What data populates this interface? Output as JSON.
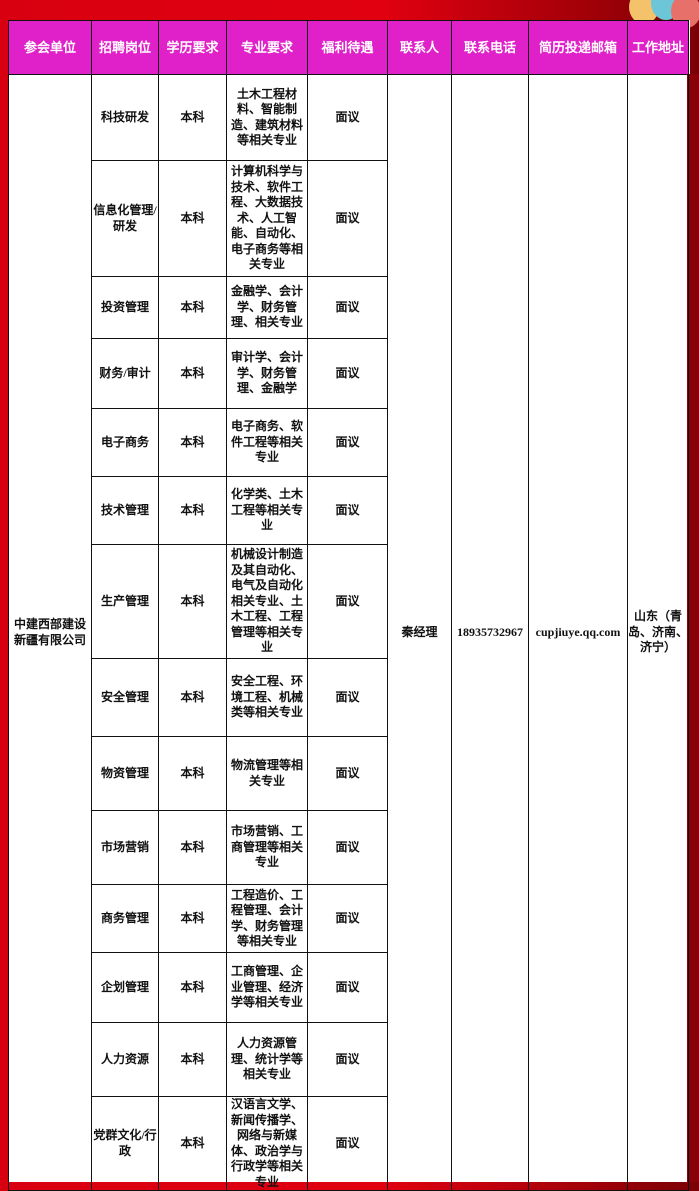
{
  "headers": [
    "参会单位",
    "招聘岗位",
    "学历要求",
    "专业要求",
    "福利待遇",
    "联系人",
    "联系电话",
    "简历投递邮箱",
    "工作地址"
  ],
  "company": "中建西部建设新疆有限公司",
  "contact": "秦经理",
  "phone": "18935732967",
  "email": "cupjiuye.qq.com",
  "address": "山东（青岛、济南、济宁）",
  "rows": [
    {
      "position": "科技研发",
      "education": "本科",
      "major": "土木工程材料、智能制造、建筑材料等相关专业",
      "benefit": "面议"
    },
    {
      "position": "信息化管理/研发",
      "education": "本科",
      "major": "计算机科学与技术、软件工程、大数据技术、人工智能、自动化、电子商务等相关专业",
      "benefit": "面议"
    },
    {
      "position": "投资管理",
      "education": "本科",
      "major": "金融学、会计学、财务管理、相关专业",
      "benefit": "面议"
    },
    {
      "position": "财务/审计",
      "education": "本科",
      "major": "审计学、会计学、财务管理、金融学",
      "benefit": "面议"
    },
    {
      "position": "电子商务",
      "education": "本科",
      "major": "电子商务、软件工程等相关专业",
      "benefit": "面议"
    },
    {
      "position": "技术管理",
      "education": "本科",
      "major": "化学类、土木工程等相关专业",
      "benefit": "面议"
    },
    {
      "position": "生产管理",
      "education": "本科",
      "major": "机械设计制造及其自动化、电气及自动化相关专业、土木工程、工程管理等相关专业",
      "benefit": "面议"
    },
    {
      "position": "安全管理",
      "education": "本科",
      "major": "安全工程、环境工程、机械类等相关专业",
      "benefit": "面议"
    },
    {
      "position": "物资管理",
      "education": "本科",
      "major": "物流管理等相关专业",
      "benefit": "面议"
    },
    {
      "position": "市场营销",
      "education": "本科",
      "major": "市场营销、工商管理等相关专业",
      "benefit": "面议"
    },
    {
      "position": "商务管理",
      "education": "本科",
      "major": "工程造价、工程管理、会计学、财务管理等相关专业",
      "benefit": "面议"
    },
    {
      "position": "企划管理",
      "education": "本科",
      "major": "工商管理、企业管理、经济学等相关专业",
      "benefit": "面议"
    },
    {
      "position": "人力资源",
      "education": "本科",
      "major": "人力资源管理、统计学等相关专业",
      "benefit": "面议"
    },
    {
      "position": "党群文化/行政",
      "education": "本科",
      "major": "汉语言文学、新闻传播学、网络与新媒体、政治学与行政学等相关专业",
      "benefit": "面议"
    }
  ],
  "colors": {
    "header": "#e020c8",
    "background": "#d80010",
    "border": "#111111"
  }
}
